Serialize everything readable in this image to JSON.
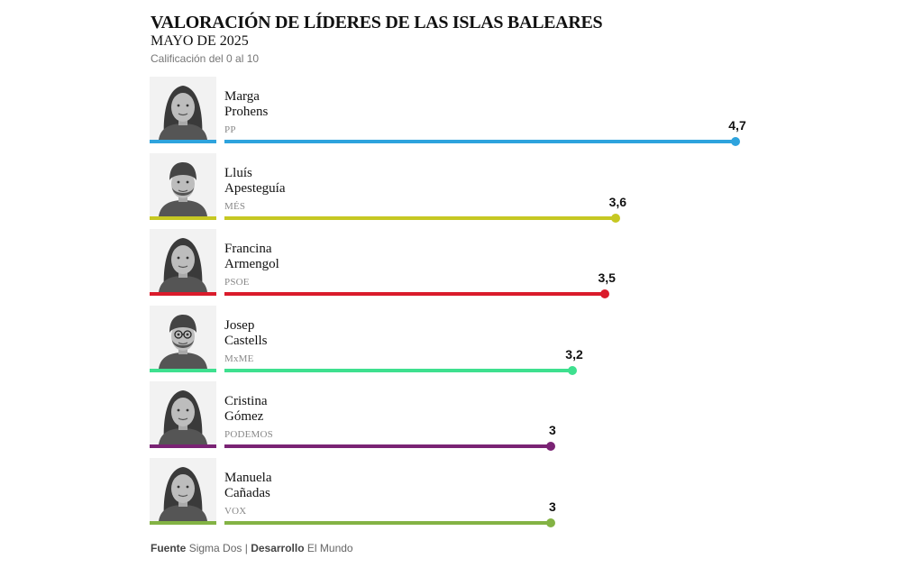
{
  "header": {
    "title": "VALORACIÓN DE LÍDERES DE LAS ISLAS BALEARES",
    "subtitle": "MAYO DE 2025",
    "note": "Calificación del 0 al 10"
  },
  "footer": {
    "source_label": "Fuente",
    "source": "Sigma Dos",
    "separator": "|",
    "dev_label": "Desarrollo",
    "dev": "El Mundo"
  },
  "chart_data": {
    "type": "bar",
    "title": "VALORACIÓN DE LÍDERES DE LAS ISLAS BALEARES",
    "subtitle": "MAYO DE 2025",
    "scale_range": [
      0,
      10
    ],
    "categories": [
      "Marga Prohens",
      "Lluís Apesteguía",
      "Francina Armengol",
      "Josep Castells",
      "Cristina Gómez",
      "Manuela Cañadas"
    ],
    "values": [
      4.7,
      3.6,
      3.5,
      3.2,
      3,
      3
    ],
    "items": [
      {
        "first": "Marga",
        "last": "Prohens",
        "party": "PP",
        "value": 4.7,
        "label": "4,7",
        "color": "#2ea3dd",
        "avatar": "woman-portrait-icon"
      },
      {
        "first": "Lluís",
        "last": "Apesteguía",
        "party": "MÉS",
        "value": 3.6,
        "label": "3,6",
        "color": "#c6c822",
        "avatar": "man-portrait-icon"
      },
      {
        "first": "Francina",
        "last": "Armengol",
        "party": "PSOE",
        "value": 3.5,
        "label": "3,5",
        "color": "#da1b2b",
        "avatar": "woman-portrait-icon"
      },
      {
        "first": "Josep",
        "last": "Castells",
        "party": "MxME",
        "value": 3.2,
        "label": "3,2",
        "color": "#3ee08f",
        "avatar": "man-portrait-icon"
      },
      {
        "first": "Cristina",
        "last": "Gómez",
        "party": "PODEMOS",
        "value": 3,
        "label": "3",
        "color": "#7a2374",
        "avatar": "woman-portrait-icon"
      },
      {
        "first": "Manuela",
        "last": "Cañadas",
        "party": "VOX",
        "value": 3,
        "label": "3",
        "color": "#83b344",
        "avatar": "woman-portrait-icon"
      }
    ]
  }
}
